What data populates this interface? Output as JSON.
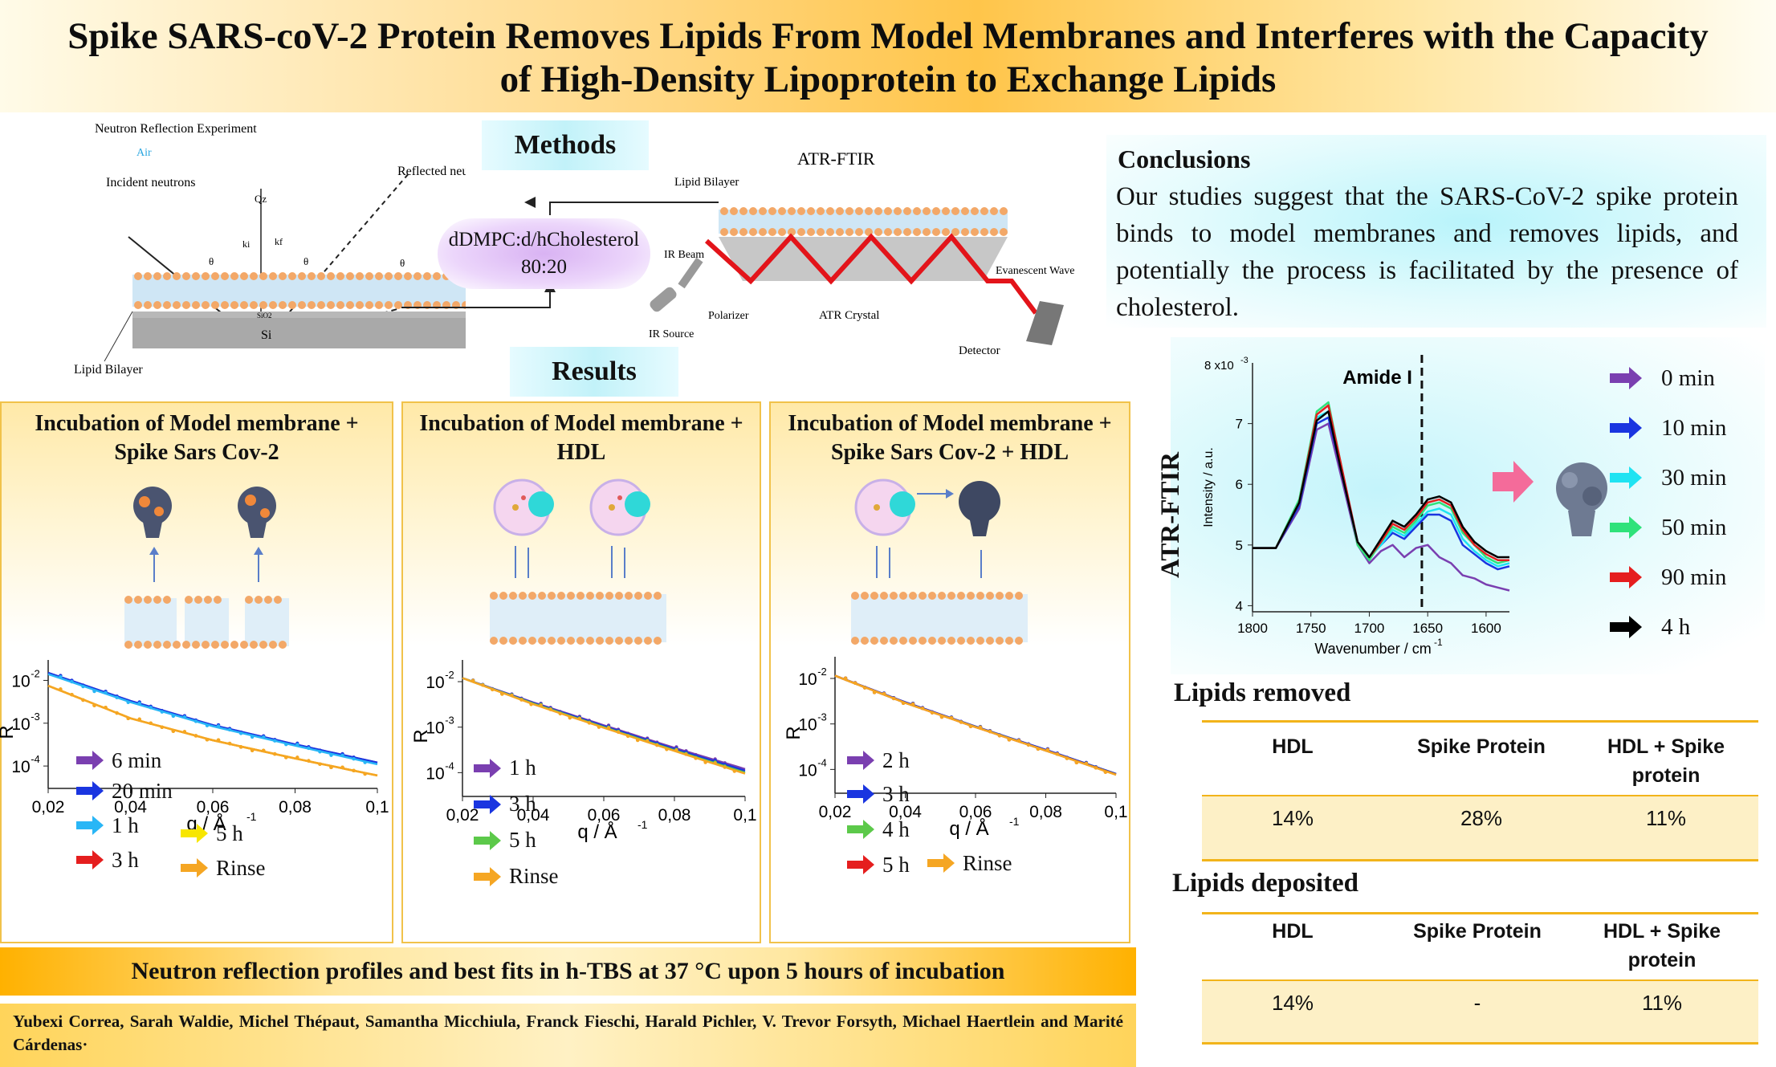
{
  "title": {
    "line1": "Spike SARS-coV-2 Protein Removes Lipids From Model Membranes and Interferes with the Capacity",
    "line2": "of High-Density Lipoprotein to Exchange Lipids"
  },
  "methods": {
    "heading": "Methods",
    "neutron": {
      "title": "Neutron Reflection Experiment",
      "air": "Air",
      "incident": "Incident neutrons",
      "reflected": "Reflected neutrons",
      "qz": "Qz",
      "ki": "ki",
      "kf": "kf",
      "theta": "θ",
      "sio2": "SiO2",
      "si": "Si",
      "bilayer": "Lipid Bilayer"
    },
    "sample": {
      "line1": "dDMPC:d/hCholesterol",
      "line2": "80:20"
    },
    "atr": {
      "title": "ATR-FTIR",
      "bilayer": "Lipid Bilayer",
      "ir_beam": "IR Beam",
      "polarizer": "Polarizer",
      "ir_source": "IR Source",
      "crystal": "ATR Crystal",
      "evanescent": "Evanescent Wave",
      "detector": "Detector"
    }
  },
  "results": {
    "heading": "Results",
    "panels": [
      {
        "title": "Incubation of Model membrane + Spike Sars Cov-2",
        "legend": [
          "6 min",
          "20 min",
          "1 h",
          "3 h"
        ],
        "legend2": [
          "5 h",
          "Rinse"
        ],
        "y_label": "R",
        "x_label": "q / Å",
        "x_sup": "-1",
        "x_ticks": [
          "0,02",
          "0,04",
          "0,06",
          "0,08",
          "0,1"
        ],
        "y_ticks": [
          "10",
          "10",
          "10"
        ],
        "y_exps": [
          "-2",
          "-3",
          "-4"
        ]
      },
      {
        "title": "Incubation of Model membrane + HDL",
        "legend": [
          "1 h",
          "3 h",
          "5 h",
          "Rinse"
        ],
        "y_label": "R",
        "x_label": "q / Å",
        "x_sup": "-1",
        "x_ticks": [
          "0,02",
          "0,04",
          "0,06",
          "0,08",
          "0,1"
        ],
        "y_ticks": [
          "10",
          "10",
          "10"
        ],
        "y_exps": [
          "-2",
          "-3",
          "-4"
        ]
      },
      {
        "title": "Incubation of Model membrane + Spike Sars Cov-2 + HDL",
        "legend": [
          "2 h",
          "3 h",
          "4 h",
          "5 h"
        ],
        "legend2": [
          "Rinse"
        ],
        "y_label": "R",
        "x_label": "q / Å",
        "x_sup": "-1",
        "x_ticks": [
          "0,02",
          "0,04",
          "0,06",
          "0,08",
          "0,1"
        ],
        "y_ticks": [
          "10",
          "10",
          "10"
        ],
        "y_exps": [
          "-2",
          "-3",
          "-4"
        ]
      }
    ],
    "caption": "Neutron reflection profiles and best fits in h-TBS at 37 °C upon 5 hours of incubation"
  },
  "authors": "Yubexi Correa, Sarah Waldie, Michel Thépaut, Samantha Micchiula, Franck Fieschi, Harald Pichler, V. Trevor Forsyth, Michael Haertlein and Marité Cárdenas·",
  "conclusions": {
    "heading": "Conclusions",
    "text": "Our studies suggest that the SARS-CoV-2 spike protein binds to model membranes and removes lipids, and potentially the process is facilitated by the presence of cholesterol."
  },
  "ftir": {
    "side_label": "ATR-FTIR",
    "y_label": "Intensity / a.u.",
    "x_label": "Wavenumber / cm",
    "x_sup": "-1",
    "y_scale": "8 x10",
    "y_scale_exp": "-3",
    "amide": "Amide I",
    "x_ticks": [
      "1800",
      "1750",
      "1700",
      "1650",
      "1600"
    ],
    "y_ticks": [
      "7",
      "6",
      "5",
      "4"
    ],
    "legend": [
      "0 min",
      "10 min",
      "30 min",
      "50 min",
      "90 min",
      "4 h"
    ],
    "colors": [
      "#7a3fb0",
      "#1a35e0",
      "#1fe3f2",
      "#2fe27a",
      "#e51e1e",
      "#000000"
    ]
  },
  "chart_data": [
    {
      "type": "line",
      "title": "Incubation of Model membrane + Spike Sars Cov-2",
      "xlabel": "q / Å-1",
      "ylabel": "R",
      "xlim": [
        0.02,
        0.1
      ],
      "ylim": [
        3e-05,
        0.03
      ],
      "yscale": "log",
      "x": [
        0.02,
        0.04,
        0.06,
        0.08,
        0.1
      ],
      "series": [
        {
          "name": "6 min",
          "color": "#7a3fb0",
          "values": [
            0.015,
            0.0033,
            0.0009,
            0.00032,
            0.00012
          ]
        },
        {
          "name": "20 min",
          "color": "#1a35e0",
          "values": [
            0.015,
            0.0033,
            0.0009,
            0.00032,
            0.00012
          ]
        },
        {
          "name": "1 h",
          "color": "#29b6f6",
          "values": [
            0.014,
            0.0031,
            0.00085,
            0.0003,
            0.00011
          ]
        },
        {
          "name": "3 h",
          "color": "#e51e1e",
          "values": [
            0.0075,
            0.0013,
            0.0004,
            0.00015,
            6e-05
          ]
        },
        {
          "name": "5 h",
          "color": "#f7e600",
          "values": [
            0.0075,
            0.0013,
            0.0004,
            0.00015,
            6e-05
          ]
        },
        {
          "name": "Rinse",
          "color": "#f5a623",
          "values": [
            0.0075,
            0.0013,
            0.0004,
            0.00015,
            6e-05
          ]
        }
      ]
    },
    {
      "type": "line",
      "title": "Incubation of Model membrane + HDL",
      "xlabel": "q / Å-1",
      "ylabel": "R",
      "xlim": [
        0.02,
        0.1
      ],
      "ylim": [
        3e-05,
        0.03
      ],
      "yscale": "log",
      "x": [
        0.02,
        0.04,
        0.06,
        0.08,
        0.1
      ],
      "series": [
        {
          "name": "1 h",
          "color": "#7a3fb0",
          "values": [
            0.012,
            0.0035,
            0.0011,
            0.00035,
            0.00012
          ]
        },
        {
          "name": "3 h",
          "color": "#1a35e0",
          "values": [
            0.012,
            0.0034,
            0.00105,
            0.00033,
            0.00011
          ]
        },
        {
          "name": "5 h",
          "color": "#5cc94a",
          "values": [
            0.012,
            0.0033,
            0.001,
            0.00031,
            0.0001
          ]
        },
        {
          "name": "Rinse",
          "color": "#f5a623",
          "values": [
            0.012,
            0.0032,
            0.00097,
            0.0003,
            9.5e-05
          ]
        }
      ]
    },
    {
      "type": "line",
      "title": "Incubation of Model membrane + Spike Sars Cov-2 + HDL",
      "xlabel": "q / Å-1",
      "ylabel": "R",
      "xlim": [
        0.02,
        0.1
      ],
      "ylim": [
        3e-05,
        0.03
      ],
      "yscale": "log",
      "x": [
        0.02,
        0.04,
        0.06,
        0.08,
        0.1
      ],
      "series": [
        {
          "name": "2 h",
          "color": "#7a3fb0",
          "values": [
            0.0115,
            0.003,
            0.00088,
            0.00027,
            8e-05
          ]
        },
        {
          "name": "3 h",
          "color": "#1a35e0",
          "values": [
            0.0115,
            0.003,
            0.00087,
            0.00027,
            8e-05
          ]
        },
        {
          "name": "4 h",
          "color": "#5cc94a",
          "values": [
            0.0115,
            0.0029,
            0.00086,
            0.00026,
            7.8e-05
          ]
        },
        {
          "name": "5 h",
          "color": "#e51e1e",
          "values": [
            0.0115,
            0.0029,
            0.00085,
            0.00026,
            7.7e-05
          ]
        },
        {
          "name": "Rinse",
          "color": "#f5a623",
          "values": [
            0.0115,
            0.0029,
            0.00085,
            0.00026,
            7.6e-05
          ]
        }
      ]
    },
    {
      "type": "line",
      "title": "ATR-FTIR",
      "xlabel": "Wavenumber / cm-1",
      "ylabel": "Intensity / a.u.",
      "xlim": [
        1800,
        1580
      ],
      "ylim": [
        3.9,
        8
      ],
      "x": [
        1800,
        1780,
        1760,
        1745,
        1735,
        1725,
        1710,
        1700,
        1690,
        1680,
        1670,
        1660,
        1650,
        1640,
        1630,
        1620,
        1610,
        1600,
        1590,
        1580
      ],
      "series": [
        {
          "name": "0 min",
          "color": "#7a3fb0",
          "values": [
            4.95,
            4.95,
            5.6,
            6.9,
            7.0,
            6.2,
            5.0,
            4.7,
            4.9,
            5.0,
            4.8,
            4.95,
            5.0,
            4.8,
            4.7,
            4.5,
            4.45,
            4.35,
            4.3,
            4.25
          ]
        },
        {
          "name": "10 min",
          "color": "#1a35e0",
          "values": [
            4.95,
            4.95,
            5.65,
            7.0,
            7.1,
            6.3,
            5.05,
            4.8,
            5.0,
            5.2,
            5.1,
            5.3,
            5.5,
            5.5,
            5.4,
            5.0,
            4.85,
            4.7,
            4.6,
            4.65
          ]
        },
        {
          "name": "30 min",
          "color": "#1fe3f2",
          "values": [
            4.95,
            4.95,
            5.7,
            7.1,
            7.2,
            6.35,
            5.05,
            4.8,
            5.0,
            5.25,
            5.15,
            5.35,
            5.55,
            5.6,
            5.5,
            5.1,
            4.9,
            4.75,
            4.65,
            4.7
          ]
        },
        {
          "name": "50 min",
          "color": "#2fe27a",
          "values": [
            4.95,
            4.95,
            5.75,
            7.2,
            7.35,
            6.4,
            5.0,
            4.75,
            5.05,
            5.3,
            5.2,
            5.4,
            5.65,
            5.7,
            5.6,
            5.2,
            5.0,
            4.8,
            4.7,
            4.75
          ]
        },
        {
          "name": "90 min",
          "color": "#e51e1e",
          "values": [
            4.95,
            4.95,
            5.7,
            7.15,
            7.3,
            6.4,
            5.05,
            4.8,
            5.05,
            5.35,
            5.25,
            5.45,
            5.7,
            5.75,
            5.65,
            5.25,
            5.0,
            4.85,
            4.75,
            4.75
          ]
        },
        {
          "name": "4 h",
          "color": "#000000",
          "values": [
            4.95,
            4.95,
            5.7,
            7.05,
            7.2,
            6.3,
            5.05,
            4.8,
            5.1,
            5.4,
            5.3,
            5.5,
            5.75,
            5.8,
            5.7,
            5.3,
            5.05,
            4.9,
            4.8,
            4.8
          ]
        }
      ],
      "annotations": [
        "Amide I"
      ]
    }
  ],
  "lipids_removed": {
    "heading": "Lipids removed",
    "headers": [
      "HDL",
      "Spike Protein",
      "HDL + Spike protein"
    ],
    "values": [
      "14%",
      "28%",
      "11%"
    ]
  },
  "lipids_deposited": {
    "heading": "Lipids deposited",
    "headers": [
      "HDL",
      "Spike Protein",
      "HDL + Spike protein"
    ],
    "values": [
      "14%",
      "-",
      "11%"
    ]
  }
}
